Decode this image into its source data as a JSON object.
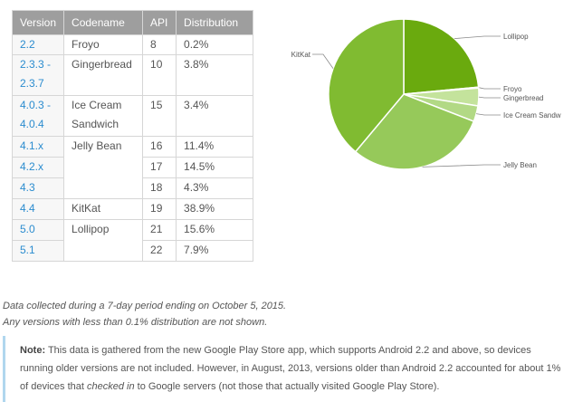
{
  "table": {
    "headers": [
      "Version",
      "Codename",
      "API",
      "Distribution"
    ],
    "rows": [
      {
        "version": "2.2",
        "codename": "Froyo",
        "api": "8",
        "distribution": "0.2%"
      },
      {
        "version": "2.3.3 - 2.3.7",
        "codename": "Gingerbread",
        "api": "10",
        "distribution": "3.8%"
      },
      {
        "version": "4.0.3 - 4.0.4",
        "codename": "Ice Cream Sandwich",
        "api": "15",
        "distribution": "3.4%"
      },
      {
        "version": "4.1.x",
        "codename": "Jelly Bean",
        "api": "16",
        "distribution": "11.4%"
      },
      {
        "version": "4.2.x",
        "codename": "",
        "api": "17",
        "distribution": "14.5%"
      },
      {
        "version": "4.3",
        "codename": "",
        "api": "18",
        "distribution": "4.3%"
      },
      {
        "version": "4.4",
        "codename": "KitKat",
        "api": "19",
        "distribution": "38.9%"
      },
      {
        "version": "5.0",
        "codename": "Lollipop",
        "api": "21",
        "distribution": "15.6%"
      },
      {
        "version": "5.1",
        "codename": "",
        "api": "22",
        "distribution": "7.9%"
      }
    ]
  },
  "chart_data": {
    "type": "pie",
    "slices": [
      {
        "label": "Lollipop",
        "value": 23.5,
        "color": "#6aaa0e"
      },
      {
        "label": "Froyo",
        "value": 0.2,
        "color": "#d6ecb3"
      },
      {
        "label": "Gingerbread",
        "value": 3.8,
        "color": "#c4e39c"
      },
      {
        "label": "Ice Cream Sandwich",
        "value": 3.4,
        "color": "#b2d985"
      },
      {
        "label": "Jelly Bean",
        "value": 30.2,
        "color": "#96c95a"
      },
      {
        "label": "KitKat",
        "value": 38.9,
        "color": "#80bb31"
      }
    ],
    "start_angle_deg": 0,
    "direction": "clockwise",
    "legend": "none"
  },
  "footnote": {
    "line1": "Data collected during a 7-day period ending on October 5, 2015.",
    "line2": "Any versions with less than 0.1% distribution are not shown."
  },
  "note": {
    "label": "Note:",
    "text1": " This data is gathered from the new Google Play Store app, which supports Android 2.2 and above, so devices running older versions are not included. However, in August, 2013, versions older than Android 2.2 accounted for about 1% of devices that ",
    "emph": "checked in",
    "text2": " to Google servers (not those that actually visited Google Play Store)."
  }
}
